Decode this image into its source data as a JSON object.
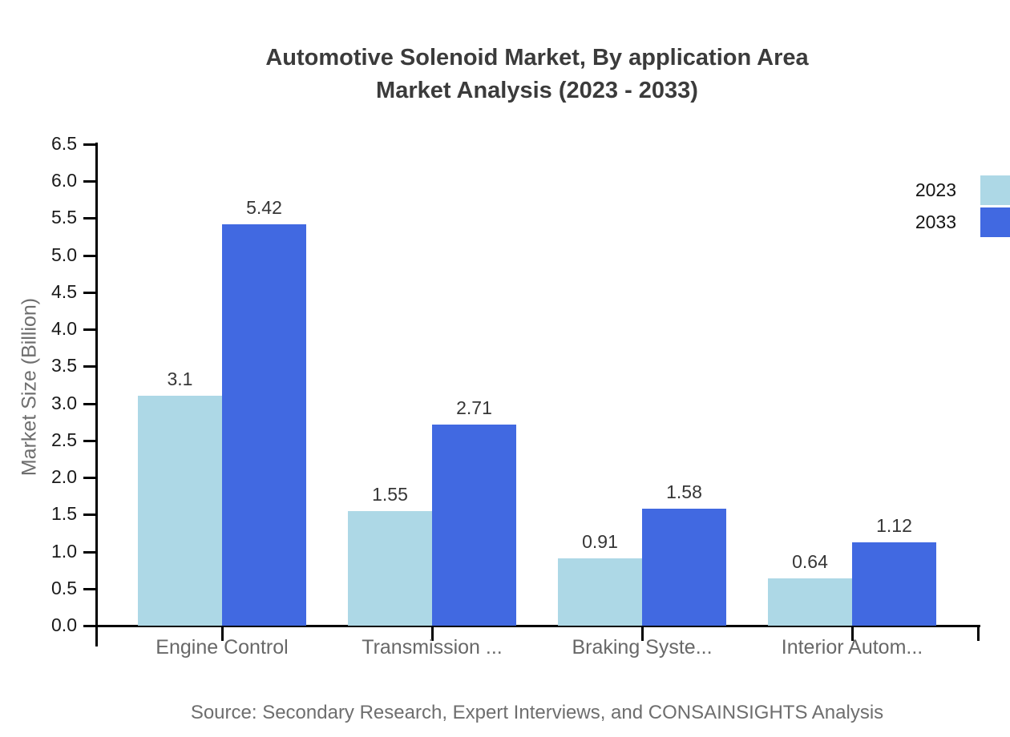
{
  "title": {
    "line1": "Automotive Solenoid Market, By application Area",
    "line2": "Market Analysis (2023 - 2033)"
  },
  "source": "Source: Secondary Research, Expert Interviews, and CONSAINSIGHTS Analysis",
  "chart_data": {
    "type": "bar",
    "title": "Automotive Solenoid Market, By application Area Market Analysis (2023 - 2033)",
    "xlabel": "",
    "ylabel": "Market Size (Billion)",
    "ylim": [
      0.0,
      6.5
    ],
    "ytick_step": 0.5,
    "ytick_labels": [
      "0.0",
      "0.5",
      "1.0",
      "1.5",
      "2.0",
      "2.5",
      "3.0",
      "3.5",
      "4.0",
      "4.5",
      "5.0",
      "5.5",
      "6.0",
      "6.5"
    ],
    "categories": [
      "Engine Control",
      "Transmission ...",
      "Braking Syste...",
      "Interior Autom..."
    ],
    "series": [
      {
        "name": "2023",
        "color": "#ADD8E6",
        "values": [
          3.1,
          1.55,
          0.91,
          0.64
        ],
        "value_labels": [
          "3.1",
          "1.55",
          "0.91",
          "0.64"
        ]
      },
      {
        "name": "2033",
        "color": "#4169E1",
        "values": [
          5.42,
          2.71,
          1.58,
          1.12
        ],
        "value_labels": [
          "5.42",
          "2.71",
          "1.58",
          "1.12"
        ]
      }
    ],
    "grid": false,
    "legend_position": "top-right",
    "axis_color": "#000000"
  }
}
